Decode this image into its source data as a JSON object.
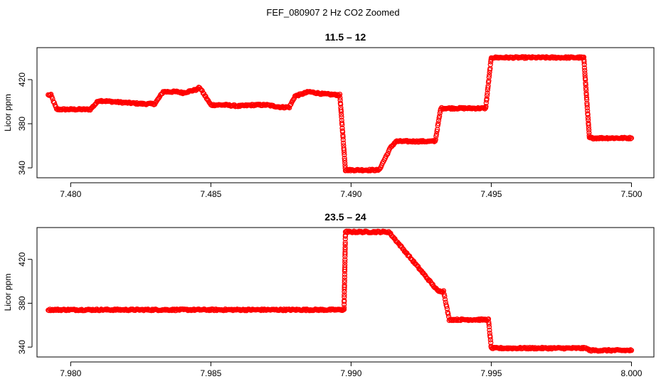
{
  "figure_title": "FEF_080907  2 Hz CO2 Zoomed",
  "colors": {
    "points": "#ff0000",
    "axes": "#000000",
    "background": "#ffffff"
  },
  "chart_data": [
    {
      "type": "scatter",
      "title": "11.5 – 12",
      "xlabel": "",
      "ylabel": "Licor ppm",
      "xlim": [
        7.4788,
        7.5008
      ],
      "ylim": [
        331,
        449
      ],
      "xticks": [
        7.48,
        7.485,
        7.49,
        7.495,
        7.5
      ],
      "xtick_labels": [
        "7.480",
        "7.485",
        "7.490",
        "7.495",
        "7.500"
      ],
      "yticks": [
        340,
        380,
        420
      ],
      "ytick_labels": [
        "340",
        "380",
        "420"
      ],
      "grid": false,
      "legend": "none",
      "marker": "open-circle",
      "series": [
        {
          "x": [
            7.4792,
            7.4793,
            7.4795,
            7.48,
            7.4807,
            7.481,
            7.4815,
            7.482,
            7.4826,
            7.483,
            7.4833,
            7.4838,
            7.484,
            7.4845,
            7.4846,
            7.485,
            7.4855,
            7.486,
            7.4865,
            7.487,
            7.4875,
            7.4878,
            7.488,
            7.4885,
            7.489,
            7.4896,
            7.4898,
            7.4902,
            7.4906,
            7.491,
            7.4914,
            7.4916,
            7.492,
            7.4925,
            7.493,
            7.4932,
            7.4935,
            7.494,
            7.4945,
            7.4948,
            7.495,
            7.4955,
            7.496,
            7.4965,
            7.497,
            7.4975,
            7.498,
            7.4983,
            7.4985,
            7.499,
            7.4995,
            7.5
          ],
          "y": [
            406,
            406,
            393,
            393,
            393,
            401,
            400,
            399,
            398,
            398,
            409,
            409,
            408,
            411,
            413,
            397,
            397,
            396,
            397,
            397,
            395,
            395,
            405,
            409,
            407,
            406,
            338,
            338,
            338,
            338,
            358,
            364,
            364,
            364,
            364,
            394,
            394,
            394,
            394,
            394,
            440,
            440,
            440,
            440,
            440,
            440,
            440,
            440,
            367,
            367,
            367,
            367
          ]
        }
      ]
    },
    {
      "type": "scatter",
      "title": "23.5 – 24",
      "xlabel": "",
      "ylabel": "Licor ppm",
      "xlim": [
        7.9788,
        8.0008
      ],
      "ylim": [
        331,
        449
      ],
      "xticks": [
        7.98,
        7.985,
        7.99,
        7.995,
        8.0
      ],
      "xtick_labels": [
        "7.980",
        "7.985",
        "7.990",
        "7.995",
        "8.000"
      ],
      "yticks": [
        340,
        380,
        420
      ],
      "ytick_labels": [
        "340",
        "380",
        "420"
      ],
      "grid": false,
      "legend": "none",
      "marker": "open-circle",
      "series": [
        {
          "x": [
            7.9792,
            7.98,
            7.981,
            7.982,
            7.983,
            7.984,
            7.985,
            7.986,
            7.987,
            7.988,
            7.989,
            7.98975,
            7.9898,
            7.9905,
            7.99135,
            7.9931,
            7.9933,
            7.9935,
            7.994,
            7.9945,
            7.9949,
            7.995,
            7.9955,
            7.996,
            7.9965,
            7.997,
            7.9975,
            7.998,
            7.9983,
            7.9984,
            7.9985,
            7.999,
            7.9995,
            8.0
          ],
          "y": [
            374,
            374,
            374,
            374,
            374,
            374,
            374,
            374,
            374,
            374,
            374,
            374,
            445,
            445,
            445,
            391,
            391,
            365,
            365,
            365,
            365,
            339,
            339,
            339,
            339,
            339,
            339,
            339,
            339,
            339,
            337,
            337,
            337,
            337
          ]
        }
      ]
    }
  ]
}
